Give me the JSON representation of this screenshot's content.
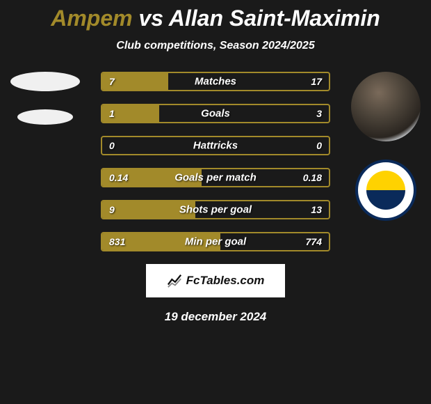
{
  "title": {
    "player1": "Ampem",
    "vs": "vs",
    "player2": "Allan Saint-Maximin",
    "player1_color": "#a28a2a",
    "player2_color": "#ffffff"
  },
  "subtitle": "Club competitions, Season 2024/2025",
  "colors": {
    "player1": "#a28a2a",
    "player2": "#ffffff",
    "background": "#1a1a1a"
  },
  "rows": [
    {
      "label": "Matches",
      "left": "7",
      "right": "17",
      "left_pct": 29,
      "right_pct": 0
    },
    {
      "label": "Goals",
      "left": "1",
      "right": "3",
      "left_pct": 25,
      "right_pct": 0
    },
    {
      "label": "Hattricks",
      "left": "0",
      "right": "0",
      "left_pct": 0,
      "right_pct": 0
    },
    {
      "label": "Goals per match",
      "left": "0.14",
      "right": "0.18",
      "left_pct": 44,
      "right_pct": 0
    },
    {
      "label": "Shots per goal",
      "left": "9",
      "right": "13",
      "left_pct": 41,
      "right_pct": 0
    },
    {
      "label": "Min per goal",
      "left": "831",
      "right": "774",
      "left_pct": 52,
      "right_pct": 0
    }
  ],
  "branding": "FcTables.com",
  "date": "19 december 2024"
}
